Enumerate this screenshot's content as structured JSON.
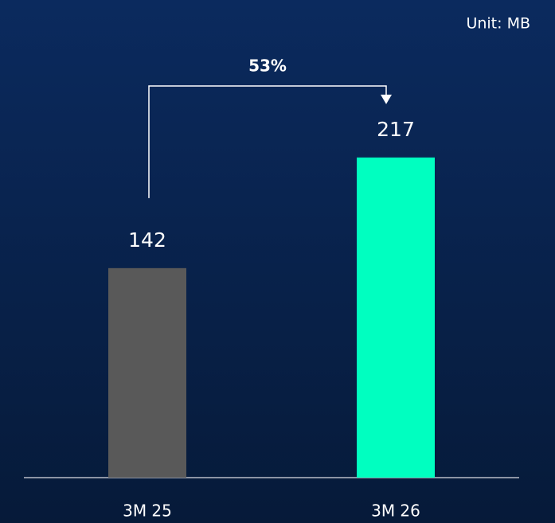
{
  "chart_data": {
    "type": "bar",
    "unit_label": "Unit: MB",
    "annotation": "53%",
    "categories": [
      "3M 25",
      "3M 26"
    ],
    "values": [
      142,
      217
    ],
    "colors": [
      "#595959",
      "#00ffc0"
    ],
    "ylim": [
      0,
      300
    ]
  }
}
